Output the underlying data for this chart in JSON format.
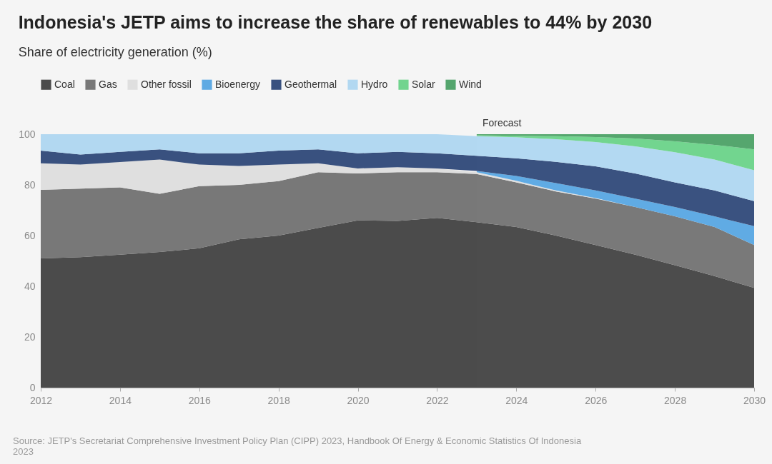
{
  "chart_data": {
    "type": "area",
    "stacked": true,
    "title": "Indonesia's JETP aims to increase the share of renewables to 44% by 2030",
    "subtitle": "Share of electricity generation (%)",
    "x": [
      2012,
      2013,
      2014,
      2015,
      2016,
      2017,
      2018,
      2019,
      2020,
      2021,
      2022,
      2023,
      2024,
      2025,
      2026,
      2027,
      2028,
      2029,
      2030
    ],
    "series": [
      {
        "name": "Coal",
        "color": "#333333",
        "values": [
          51,
          51.5,
          52.5,
          53.5,
          55,
          58.5,
          60,
          63,
          66,
          65.8,
          67,
          65.3,
          63.4,
          60,
          56.3,
          52.5,
          48.3,
          44,
          39.4
        ]
      },
      {
        "name": "Gas",
        "color": "#666666",
        "values": [
          27,
          27,
          26.5,
          23,
          24.5,
          21.5,
          21.5,
          22,
          18.5,
          19.2,
          18,
          19,
          17.6,
          17.4,
          18.3,
          18.8,
          19.3,
          19.4,
          16.9
        ]
      },
      {
        "name": "Other fossil",
        "color": "#dcdcdc",
        "values": [
          10.5,
          9.5,
          10,
          13.5,
          8.5,
          7.5,
          6.5,
          3.5,
          2,
          2,
          1.5,
          0.7,
          0.6,
          0.4,
          0.2,
          null,
          null,
          null,
          null
        ]
      },
      {
        "name": "Bioenergy",
        "color": "#4a9fe0",
        "values": [
          null,
          null,
          null,
          null,
          null,
          null,
          null,
          null,
          null,
          null,
          null,
          0.5,
          1.9,
          2.9,
          3,
          3.3,
          3.7,
          4.2,
          7.4
        ]
      },
      {
        "name": "Geothermal",
        "color": "#1f3a6e",
        "values": [
          5,
          4,
          4,
          4,
          4.5,
          5,
          5.5,
          5.5,
          6,
          6,
          6,
          6,
          7,
          8.4,
          9.5,
          9.9,
          9.7,
          10.2,
          9.9
        ]
      },
      {
        "name": "Hydro",
        "color": "#a8d4f0",
        "values": [
          6.5,
          8,
          7,
          6,
          7.5,
          7.5,
          6.5,
          6,
          7.5,
          7,
          7.5,
          7.7,
          8.3,
          8.9,
          9.6,
          10.7,
          11.9,
          12.2,
          12.2
        ]
      },
      {
        "name": "Solar",
        "color": "#5fcf80",
        "values": [
          null,
          null,
          null,
          null,
          null,
          null,
          null,
          null,
          null,
          null,
          null,
          0.4,
          0.6,
          1.2,
          2,
          3.1,
          4.3,
          5.8,
          8.2
        ]
      },
      {
        "name": "Wind",
        "color": "#3d9a5a",
        "values": [
          null,
          null,
          null,
          null,
          null,
          null,
          null,
          null,
          null,
          null,
          null,
          0.4,
          0.6,
          0.8,
          1.1,
          1.7,
          2.8,
          4.2,
          6
        ]
      }
    ],
    "xlim": [
      2012,
      2030
    ],
    "xticks": [
      2012,
      2014,
      2016,
      2018,
      2020,
      2022,
      2024,
      2026,
      2028,
      2030
    ],
    "ylim": [
      0,
      100
    ],
    "yticks": [
      0,
      20,
      40,
      60,
      80,
      100
    ],
    "bands": [
      {
        "axis": "x",
        "from": 2023,
        "to": 2030,
        "label": "Forecast",
        "color": "#ffffff"
      }
    ],
    "legend": "top left",
    "annotations": [
      "Source: JETP's Secretariat Comprehensive Investment Policy Plan (CIPP) 2023, Handbook Of Energy & Economic Statistics Of Indonesia 2023"
    ]
  }
}
